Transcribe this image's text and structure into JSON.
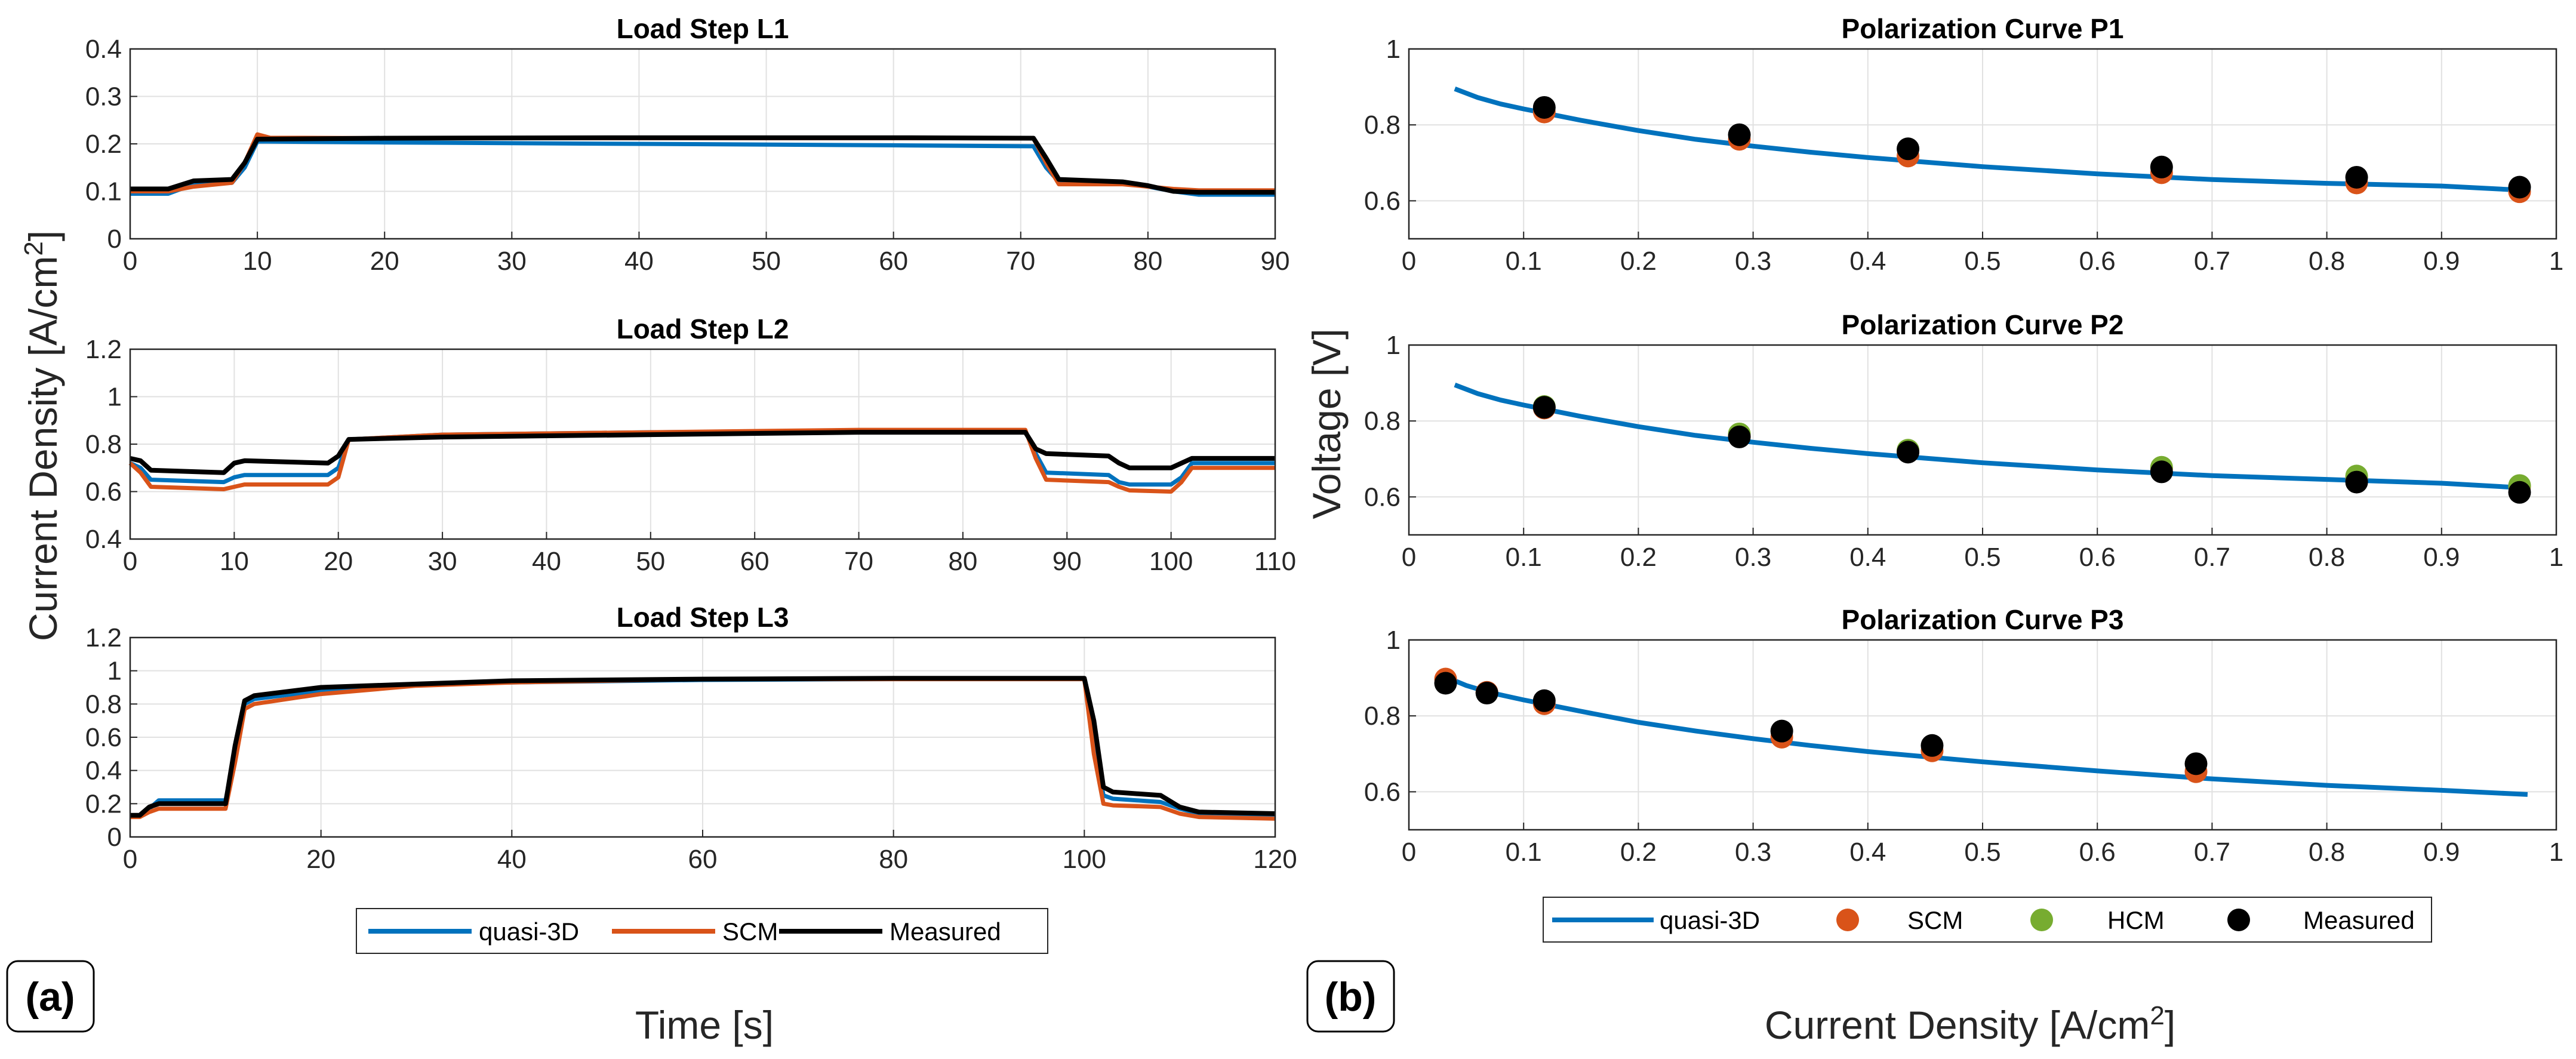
{
  "colors": {
    "quasi3d": "#0072BD",
    "scm": "#D95319",
    "hcm": "#77AC30",
    "measured": "#000000",
    "grid": "#e1e1e1",
    "axis": "#262626"
  },
  "panel_a": {
    "label": "(a)",
    "ylabel": "Current Density [A/cm",
    "ylabel_sup": "2",
    "ylabel_end": "]",
    "xlabel": "Time [s]",
    "legend": [
      "quasi-3D",
      "SCM",
      "Measured"
    ]
  },
  "panel_b": {
    "label": "(b)",
    "ylabel": "Voltage [V]",
    "xlabel": "Current Density [A/cm",
    "xlabel_sup": "2",
    "xlabel_end": "]",
    "legend": [
      "quasi-3D",
      "SCM",
      "HCM",
      "Measured"
    ]
  },
  "chart_data": [
    {
      "type": "line",
      "title": "Load Step L1",
      "xlim": [
        0,
        90
      ],
      "ylim": [
        0,
        0.4
      ],
      "xticks": [
        "0",
        "10",
        "20",
        "30",
        "40",
        "50",
        "60",
        "70",
        "80",
        "90"
      ],
      "yticks": [
        "0",
        "0.1",
        "0.2",
        "0.3",
        "0.4"
      ],
      "series": [
        {
          "name": "quasi-3D",
          "x": [
            0,
            3,
            5,
            8,
            9,
            10,
            20,
            40,
            60,
            71,
            72,
            73,
            78,
            80,
            82,
            84,
            90
          ],
          "y": [
            0.095,
            0.095,
            0.115,
            0.118,
            0.15,
            0.205,
            0.203,
            0.2,
            0.197,
            0.195,
            0.15,
            0.12,
            0.118,
            0.11,
            0.1,
            0.093,
            0.093
          ]
        },
        {
          "name": "SCM",
          "x": [
            0,
            3,
            5,
            8,
            9,
            10,
            11,
            20,
            40,
            60,
            71,
            72,
            73,
            78,
            80,
            82,
            84,
            90
          ],
          "y": [
            0.1,
            0.1,
            0.11,
            0.118,
            0.16,
            0.22,
            0.213,
            0.212,
            0.212,
            0.212,
            0.212,
            0.16,
            0.115,
            0.115,
            0.11,
            0.105,
            0.102,
            0.102
          ]
        },
        {
          "name": "Measured",
          "x": [
            0,
            3,
            5,
            8,
            9,
            10,
            20,
            40,
            60,
            71,
            72,
            73,
            78,
            80,
            82,
            84,
            90
          ],
          "y": [
            0.105,
            0.105,
            0.122,
            0.125,
            0.16,
            0.21,
            0.212,
            0.213,
            0.213,
            0.212,
            0.17,
            0.125,
            0.12,
            0.112,
            0.1,
            0.098,
            0.098
          ]
        }
      ]
    },
    {
      "type": "line",
      "title": "Load Step L2",
      "xlim": [
        0,
        110
      ],
      "ylim": [
        0.4,
        1.2
      ],
      "xticks": [
        "0",
        "10",
        "20",
        "30",
        "40",
        "50",
        "60",
        "70",
        "80",
        "90",
        "100",
        "110"
      ],
      "yticks": [
        "0.4",
        "0.6",
        "0.8",
        "1",
        "1.2"
      ],
      "series": [
        {
          "name": "quasi-3D",
          "x": [
            0,
            1,
            2,
            9,
            10,
            11,
            19,
            20,
            21,
            30,
            50,
            70,
            86,
            87,
            88,
            94,
            95,
            96,
            100,
            101,
            102,
            110
          ],
          "y": [
            0.72,
            0.7,
            0.65,
            0.64,
            0.66,
            0.67,
            0.67,
            0.7,
            0.82,
            0.84,
            0.85,
            0.855,
            0.855,
            0.76,
            0.68,
            0.67,
            0.64,
            0.63,
            0.63,
            0.66,
            0.72,
            0.72
          ]
        },
        {
          "name": "SCM",
          "x": [
            0,
            1,
            2,
            9,
            10,
            11,
            19,
            20,
            21,
            30,
            50,
            70,
            86,
            87,
            88,
            94,
            95,
            96,
            100,
            101,
            102,
            110
          ],
          "y": [
            0.72,
            0.68,
            0.62,
            0.61,
            0.62,
            0.63,
            0.63,
            0.66,
            0.82,
            0.84,
            0.85,
            0.86,
            0.86,
            0.74,
            0.65,
            0.64,
            0.62,
            0.605,
            0.6,
            0.64,
            0.7,
            0.7
          ]
        },
        {
          "name": "Measured",
          "x": [
            0,
            1,
            2,
            9,
            10,
            11,
            19,
            20,
            21,
            30,
            50,
            70,
            86,
            87,
            88,
            94,
            95,
            96,
            100,
            101,
            102,
            110
          ],
          "y": [
            0.74,
            0.73,
            0.69,
            0.68,
            0.72,
            0.73,
            0.72,
            0.75,
            0.82,
            0.83,
            0.84,
            0.85,
            0.85,
            0.78,
            0.76,
            0.75,
            0.72,
            0.7,
            0.7,
            0.72,
            0.74,
            0.74
          ]
        }
      ]
    },
    {
      "type": "line",
      "title": "Load Step L3",
      "xlim": [
        0,
        120
      ],
      "ylim": [
        0,
        1.2
      ],
      "xticks": [
        "0",
        "20",
        "40",
        "60",
        "80",
        "100",
        "120"
      ],
      "yticks": [
        "0",
        "0.2",
        "0.4",
        "0.6",
        "0.8",
        "1",
        "1.2"
      ],
      "series": [
        {
          "name": "quasi-3D",
          "x": [
            0,
            1,
            2,
            3,
            10,
            11,
            12,
            13,
            20,
            30,
            40,
            60,
            80,
            100,
            101,
            102,
            103,
            108,
            110,
            112,
            120
          ],
          "y": [
            0.13,
            0.13,
            0.17,
            0.22,
            0.22,
            0.5,
            0.8,
            0.83,
            0.88,
            0.92,
            0.93,
            0.945,
            0.95,
            0.95,
            0.6,
            0.25,
            0.23,
            0.21,
            0.17,
            0.14,
            0.13
          ]
        },
        {
          "name": "SCM",
          "x": [
            0,
            1,
            2,
            3,
            10,
            11,
            12,
            13,
            20,
            30,
            40,
            60,
            80,
            100,
            101,
            102,
            103,
            108,
            110,
            112,
            120
          ],
          "y": [
            0.12,
            0.12,
            0.15,
            0.17,
            0.17,
            0.45,
            0.77,
            0.8,
            0.86,
            0.91,
            0.93,
            0.95,
            0.95,
            0.95,
            0.5,
            0.2,
            0.19,
            0.18,
            0.14,
            0.12,
            0.11
          ]
        },
        {
          "name": "Measured",
          "x": [
            0,
            1,
            2,
            3,
            10,
            11,
            12,
            13,
            20,
            30,
            40,
            60,
            80,
            100,
            101,
            102,
            103,
            108,
            110,
            112,
            120
          ],
          "y": [
            0.13,
            0.13,
            0.18,
            0.2,
            0.2,
            0.55,
            0.82,
            0.85,
            0.9,
            0.92,
            0.94,
            0.95,
            0.955,
            0.955,
            0.7,
            0.3,
            0.27,
            0.25,
            0.18,
            0.15,
            0.14
          ]
        }
      ]
    },
    {
      "type": "scatter",
      "title": "Polarization Curve P1",
      "xlim": [
        0,
        1
      ],
      "ylim": [
        0.5,
        1
      ],
      "xticks": [
        "0",
        "0.1",
        "0.2",
        "0.3",
        "0.4",
        "0.5",
        "0.6",
        "0.7",
        "0.8",
        "0.9",
        "1"
      ],
      "yticks": [
        "0.6",
        "0.8",
        "1"
      ],
      "line": {
        "name": "quasi-3D",
        "x": [
          0.04,
          0.06,
          0.08,
          0.1,
          0.12,
          0.15,
          0.2,
          0.25,
          0.3,
          0.35,
          0.4,
          0.5,
          0.6,
          0.7,
          0.8,
          0.9,
          0.97
        ],
        "y": [
          0.895,
          0.872,
          0.855,
          0.842,
          0.83,
          0.812,
          0.785,
          0.762,
          0.744,
          0.728,
          0.714,
          0.69,
          0.671,
          0.656,
          0.646,
          0.639,
          0.628
        ]
      },
      "points": [
        {
          "name": "SCM",
          "x": [
            0.118,
            0.288,
            0.435,
            0.656,
            0.826,
            0.968
          ],
          "y": [
            0.834,
            0.762,
            0.718,
            0.674,
            0.647,
            0.624
          ]
        },
        {
          "name": "Measured",
          "x": [
            0.118,
            0.288,
            0.435,
            0.656,
            0.826,
            0.968
          ],
          "y": [
            0.846,
            0.774,
            0.737,
            0.689,
            0.662,
            0.636
          ]
        }
      ]
    },
    {
      "type": "scatter",
      "title": "Polarization Curve P2",
      "xlim": [
        0,
        1
      ],
      "ylim": [
        0.5,
        1
      ],
      "xticks": [
        "0",
        "0.1",
        "0.2",
        "0.3",
        "0.4",
        "0.5",
        "0.6",
        "0.7",
        "0.8",
        "0.9",
        "1"
      ],
      "yticks": [
        "0.6",
        "0.8",
        "1"
      ],
      "line": {
        "name": "quasi-3D",
        "x": [
          0.04,
          0.06,
          0.08,
          0.1,
          0.12,
          0.15,
          0.2,
          0.25,
          0.3,
          0.35,
          0.4,
          0.5,
          0.6,
          0.7,
          0.8,
          0.9,
          0.97
        ],
        "y": [
          0.895,
          0.872,
          0.855,
          0.842,
          0.83,
          0.812,
          0.785,
          0.762,
          0.744,
          0.728,
          0.714,
          0.69,
          0.671,
          0.656,
          0.646,
          0.636,
          0.624
        ]
      },
      "points": [
        {
          "name": "SCM",
          "x": [
            0.118,
            0.288,
            0.435,
            0.656,
            0.826,
            0.968
          ],
          "y": [
            0.834,
            0.762,
            0.721,
            0.675,
            0.651,
            0.628
          ]
        },
        {
          "name": "HCM",
          "x": [
            0.118,
            0.288,
            0.435,
            0.656,
            0.826,
            0.968
          ],
          "y": [
            0.838,
            0.766,
            0.723,
            0.678,
            0.655,
            0.63
          ]
        },
        {
          "name": "Measured",
          "x": [
            0.118,
            0.288,
            0.435,
            0.656,
            0.826,
            0.968
          ],
          "y": [
            0.836,
            0.758,
            0.718,
            0.666,
            0.639,
            0.612
          ]
        }
      ]
    },
    {
      "type": "scatter",
      "title": "Polarization Curve P3",
      "xlim": [
        0,
        1
      ],
      "ylim": [
        0.5,
        1
      ],
      "xticks": [
        "0",
        "0.1",
        "0.2",
        "0.3",
        "0.4",
        "0.5",
        "0.6",
        "0.7",
        "0.8",
        "0.9",
        "1"
      ],
      "yticks": [
        "0.6",
        "0.8",
        "1"
      ],
      "line": {
        "name": "quasi-3D",
        "x": [
          0.03,
          0.05,
          0.07,
          0.1,
          0.12,
          0.15,
          0.2,
          0.25,
          0.3,
          0.35,
          0.4,
          0.5,
          0.6,
          0.7,
          0.8,
          0.9,
          0.975
        ],
        "y": [
          0.905,
          0.88,
          0.862,
          0.842,
          0.83,
          0.812,
          0.783,
          0.76,
          0.74,
          0.722,
          0.706,
          0.679,
          0.655,
          0.634,
          0.617,
          0.604,
          0.593
        ]
      },
      "points": [
        {
          "name": "SCM",
          "x": [
            0.032,
            0.068,
            0.118,
            0.325,
            0.456,
            0.686
          ],
          "y": [
            0.897,
            0.862,
            0.832,
            0.744,
            0.708,
            0.653
          ]
        },
        {
          "name": "Measured",
          "x": [
            0.032,
            0.068,
            0.118,
            0.325,
            0.456,
            0.686
          ],
          "y": [
            0.886,
            0.86,
            0.84,
            0.76,
            0.722,
            0.674
          ]
        }
      ]
    }
  ]
}
